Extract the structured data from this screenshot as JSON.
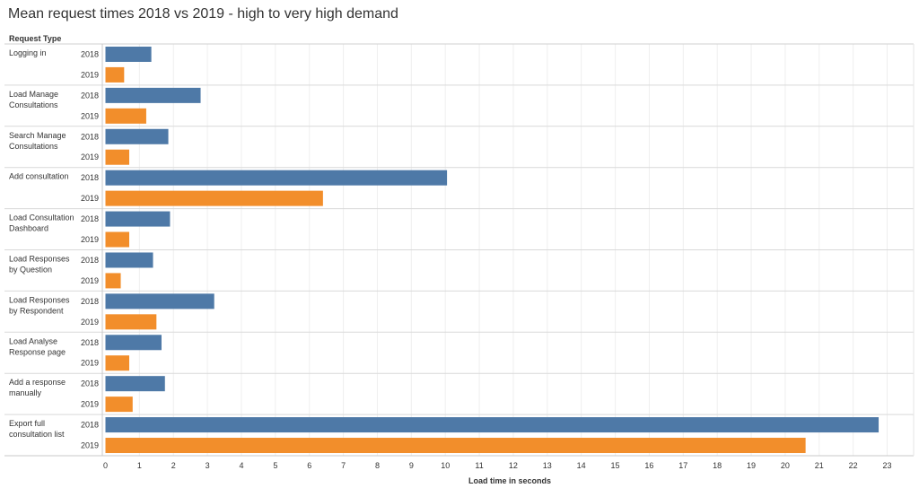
{
  "chart_data": {
    "type": "bar",
    "orientation": "horizontal",
    "title": "Mean request times 2018 vs 2019 - high to very high demand",
    "row_header": "Request Type",
    "xlabel": "Load time in seconds",
    "xlim": [
      0,
      24
    ],
    "xticks": [
      0,
      1,
      2,
      3,
      4,
      5,
      6,
      7,
      8,
      9,
      10,
      11,
      12,
      13,
      14,
      15,
      16,
      17,
      18,
      19,
      20,
      21,
      22,
      23
    ],
    "grid": true,
    "categories": [
      "Logging in",
      "Load Manage Consultations",
      "Search Manage Consultations",
      "Add consultation",
      "Load Consultation Dashboard",
      "Load Responses by Question",
      "Load Responses by Respondent",
      "Load Analyse Response page",
      "Add a response manually",
      "Export full consultation list"
    ],
    "category_lines": [
      [
        "Logging in"
      ],
      [
        "Load Manage",
        "Consultations"
      ],
      [
        "Search Manage",
        "Consultations"
      ],
      [
        "Add consultation"
      ],
      [
        "Load Consultation",
        "Dashboard"
      ],
      [
        "Load Responses",
        "by Question"
      ],
      [
        "Load Responses",
        "by Respondent"
      ],
      [
        "Load Analyse",
        "Response page"
      ],
      [
        "Add a response",
        "manually"
      ],
      [
        "Export full",
        "consultation list"
      ]
    ],
    "series": [
      {
        "name": "2018",
        "color": "#4e79a7",
        "values": [
          1.35,
          2.8,
          1.85,
          10.05,
          1.9,
          1.4,
          3.2,
          1.65,
          1.75,
          22.75
        ]
      },
      {
        "name": "2019",
        "color": "#f28e2b",
        "values": [
          0.55,
          1.2,
          0.7,
          6.4,
          0.7,
          0.45,
          1.5,
          0.7,
          0.8,
          20.6
        ]
      }
    ]
  }
}
